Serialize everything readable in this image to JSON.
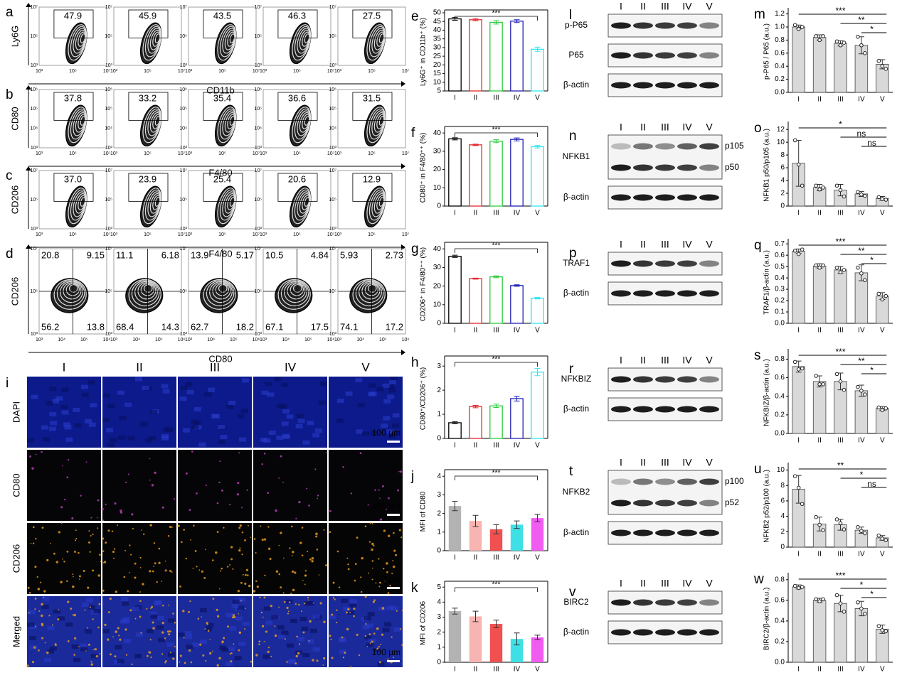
{
  "flow": {
    "rows": [
      {
        "panel": "a",
        "ylabel": "Ly6G",
        "xlabel": "CD11b",
        "xticks": [
          "10³",
          "10⁵",
          "10⁷"
        ],
        "yticks": [
          "10⁷",
          "10⁵",
          "10³"
        ],
        "gates": [
          "47.9",
          "45.9",
          "43.5",
          "46.3",
          "27.5"
        ]
      },
      {
        "panel": "b",
        "ylabel": "CD80",
        "xlabel": "F4/80",
        "xticks": [
          "10³",
          "10⁵",
          "10⁷"
        ],
        "yticks": [
          "10⁶",
          "10⁵",
          "10⁴",
          "10³"
        ],
        "gates": [
          "37.8",
          "33.2",
          "35.4",
          "36.6",
          "31.5"
        ]
      },
      {
        "panel": "c",
        "ylabel": "CD206",
        "xlabel": "F4/80",
        "xticks": [
          "10³",
          "10⁵",
          "10⁷"
        ],
        "yticks": [
          "10⁷",
          "10⁵",
          "10³"
        ],
        "gates": [
          "37.0",
          "23.9",
          "25.4",
          "20.6",
          "12.9"
        ]
      },
      {
        "panel": "d",
        "ylabel": "CD206",
        "xlabel": "CD80",
        "xticks": [
          "10³",
          "10⁴",
          "10⁵",
          "10⁶"
        ],
        "yticks": [
          "10⁷",
          "10⁵",
          "10³"
        ],
        "quadrants": [
          [
            "20.8",
            "9.15",
            "56.2",
            "13.8"
          ],
          [
            "11.1",
            "6.18",
            "68.4",
            "14.3"
          ],
          [
            "13.9",
            "5.17",
            "62.7",
            "18.2"
          ],
          [
            "10.5",
            "4.84",
            "67.1",
            "17.5"
          ],
          [
            "5.93",
            "2.73",
            "74.1",
            "17.2"
          ]
        ]
      }
    ]
  },
  "microscopy": {
    "panel": "i",
    "columns": [
      "I",
      "II",
      "III",
      "IV",
      "V"
    ],
    "rows": [
      "DAPI",
      "CD80",
      "CD206",
      "Merged"
    ],
    "scale_bar": "100 µm"
  },
  "blots": [
    {
      "panel": "l",
      "lanes": [
        "I",
        "II",
        "III",
        "IV",
        "V"
      ],
      "rows": [
        {
          "label": "p-P65"
        },
        {
          "label": "P65"
        },
        {
          "label": "β-actin"
        }
      ]
    },
    {
      "panel": "n",
      "lanes": [
        "I",
        "II",
        "III",
        "IV",
        "V"
      ],
      "rows": [
        {
          "label": "NFKB1",
          "bands": [
            "p105",
            "p50"
          ]
        },
        {
          "label": "β-actin"
        }
      ]
    },
    {
      "panel": "p",
      "lanes": [
        "I",
        "II",
        "III",
        "IV",
        "V"
      ],
      "rows": [
        {
          "label": "TRAF1"
        },
        {
          "label": "β-actin"
        }
      ]
    },
    {
      "panel": "r",
      "lanes": [
        "I",
        "II",
        "III",
        "IV",
        "V"
      ],
      "rows": [
        {
          "label": "NFKBIZ"
        },
        {
          "label": "β-actin"
        }
      ]
    },
    {
      "panel": "t",
      "lanes": [
        "I",
        "II",
        "III",
        "IV",
        "V"
      ],
      "rows": [
        {
          "label": "NFKB2",
          "bands": [
            "p100",
            "p52"
          ]
        },
        {
          "label": "β-actin"
        }
      ]
    },
    {
      "panel": "v",
      "lanes": [
        "I",
        "II",
        "III",
        "IV",
        "V"
      ],
      "rows": [
        {
          "label": "BIRC2"
        },
        {
          "label": "β-actin"
        }
      ]
    }
  ],
  "chart_data": [
    {
      "type": "bar",
      "panel": "e",
      "ylabel": "Ly6G⁺ in CD11b⁺ (%)",
      "categories": [
        "I",
        "II",
        "III",
        "IV",
        "V"
      ],
      "values": [
        46.5,
        46,
        44.5,
        45.2,
        29
      ],
      "errors": [
        0.8,
        0.6,
        1,
        0.8,
        1.2
      ],
      "bar_style": "outline",
      "colors": [
        "#000000",
        "#e8262b",
        "#2ecc40",
        "#1f1fb4",
        "#2ee6f0"
      ],
      "ylim": [
        5,
        50
      ],
      "yticks": [
        5,
        10,
        15,
        20,
        25,
        30,
        35,
        40,
        45,
        50
      ],
      "brackets": [
        "***"
      ]
    },
    {
      "type": "bar",
      "panel": "f",
      "ylabel": "CD80⁺ in F4/80⁺⁺ (%)",
      "categories": [
        "I",
        "II",
        "III",
        "IV",
        "V"
      ],
      "values": [
        36.8,
        33.5,
        35.5,
        36.5,
        32.5
      ],
      "errors": [
        0.6,
        0.4,
        0.8,
        0.8,
        0.7
      ],
      "bar_style": "outline",
      "colors": [
        "#000000",
        "#e8262b",
        "#2ecc40",
        "#1f1fb4",
        "#2ee6f0"
      ],
      "ylim": [
        0,
        42
      ],
      "yticks": [
        0,
        10,
        20,
        30,
        40
      ],
      "brackets": [
        "***"
      ]
    },
    {
      "type": "bar",
      "panel": "g",
      "ylabel": "CD206⁺ in F4/80⁺⁺ (%)",
      "categories": [
        "I",
        "II",
        "III",
        "IV",
        "V"
      ],
      "values": [
        36,
        24,
        25,
        20.3,
        13.5
      ],
      "errors": [
        0.6,
        0.3,
        0.5,
        0.4,
        0.4
      ],
      "bar_style": "outline",
      "colors": [
        "#000000",
        "#e8262b",
        "#2ecc40",
        "#1f1fb4",
        "#2ee6f0"
      ],
      "ylim": [
        0,
        42
      ],
      "yticks": [
        0,
        10,
        20,
        30,
        40
      ],
      "brackets": [
        "***"
      ]
    },
    {
      "type": "bar",
      "panel": "h",
      "ylabel": "CD80⁺/CD206⁺ (%)",
      "categories": [
        "I",
        "II",
        "III",
        "IV",
        "V"
      ],
      "values": [
        0.65,
        1.32,
        1.35,
        1.65,
        2.75
      ],
      "errors": [
        0.04,
        0.05,
        0.07,
        0.1,
        0.15
      ],
      "bar_style": "outline",
      "colors": [
        "#000000",
        "#e8262b",
        "#2ecc40",
        "#1f1fb4",
        "#2ee6f0"
      ],
      "ylim": [
        0,
        3.3
      ],
      "yticks": [
        0,
        1,
        2,
        3
      ],
      "brackets": [
        "***"
      ]
    },
    {
      "type": "bar",
      "panel": "j",
      "ylabel": "MFI of CD80",
      "categories": [
        "I",
        "II",
        "III",
        "IV",
        "V"
      ],
      "values": [
        2.4,
        1.6,
        1.15,
        1.4,
        1.75
      ],
      "errors": [
        0.25,
        0.3,
        0.25,
        0.2,
        0.2
      ],
      "bar_style": "filled",
      "colors": [
        "#b3b3b3",
        "#f7b4b0",
        "#f0504f",
        "#3ee0e6",
        "#f05cf0"
      ],
      "ylim": [
        0,
        4.2
      ],
      "yticks": [
        0,
        1,
        2,
        3,
        4
      ],
      "brackets": [
        "***"
      ]
    },
    {
      "type": "bar",
      "panel": "k",
      "ylabel": "MFI of CD206",
      "categories": [
        "I",
        "II",
        "III",
        "IV",
        "V"
      ],
      "values": [
        3.4,
        3.05,
        2.55,
        1.55,
        1.65
      ],
      "errors": [
        0.2,
        0.35,
        0.25,
        0.4,
        0.15
      ],
      "bar_style": "filled",
      "colors": [
        "#b3b3b3",
        "#f7b4b0",
        "#f0504f",
        "#3ee0e6",
        "#f05cf0"
      ],
      "ylim": [
        0,
        5.2
      ],
      "yticks": [
        0,
        1,
        2,
        3,
        4,
        5
      ],
      "brackets": [
        "***"
      ]
    },
    {
      "type": "bar",
      "panel": "m",
      "ylabel": "p-P65 / P65 (a.u.)",
      "categories": [
        "I",
        "II",
        "III",
        "IV",
        "V"
      ],
      "values": [
        1.0,
        0.84,
        0.75,
        0.72,
        0.43
      ],
      "errors": [
        0.03,
        0.04,
        0.04,
        0.13,
        0.07
      ],
      "points": [
        [
          1.03,
          0.97,
          1.0
        ],
        [
          0.86,
          0.8,
          0.86
        ],
        [
          0.78,
          0.72,
          0.76
        ],
        [
          0.85,
          0.72,
          0.6
        ],
        [
          0.48,
          0.4,
          0.36
        ]
      ],
      "bar_style": "filled",
      "colors": [
        "#d9d9d9",
        "#d9d9d9",
        "#d9d9d9",
        "#d9d9d9",
        "#d9d9d9"
      ],
      "ylim": [
        0,
        1.25
      ],
      "yticks": [
        {
          "value": 0,
          "label": "0.0"
        },
        0.2,
        0.4,
        0.6,
        0.8,
        {
          "value": 1,
          "label": "1.0"
        },
        1.2
      ],
      "brackets": [
        "***",
        "**",
        "*"
      ]
    },
    {
      "type": "bar",
      "panel": "o",
      "ylabel": "NFKB1 p50/p105 (a.u.)",
      "categories": [
        "I",
        "II",
        "III",
        "IV",
        "V"
      ],
      "values": [
        6.7,
        2.9,
        2.5,
        1.9,
        1.2
      ],
      "errors": [
        3.6,
        0.5,
        0.9,
        0.4,
        0.3
      ],
      "points": [
        [
          10.3,
          6.5,
          3.2
        ],
        [
          3.2,
          2.6,
          2.9
        ],
        [
          3.2,
          2.5,
          1.5
        ],
        [
          2.2,
          1.8,
          1.6
        ],
        [
          1.4,
          1.1,
          1.0
        ]
      ],
      "bar_style": "filled",
      "colors": [
        "#d9d9d9",
        "#d9d9d9",
        "#d9d9d9",
        "#d9d9d9",
        "#d9d9d9"
      ],
      "ylim": [
        0,
        12.8
      ],
      "yticks": [
        0,
        2,
        4,
        6,
        8,
        10,
        12
      ],
      "brackets": [
        "*",
        "ns",
        "ns"
      ]
    },
    {
      "type": "bar",
      "panel": "q",
      "ylabel": "TRAF1/β-actin (a.u.)",
      "categories": [
        "I",
        "II",
        "III",
        "IV",
        "V"
      ],
      "values": [
        0.635,
        0.505,
        0.47,
        0.445,
        0.24
      ],
      "errors": [
        0.02,
        0.02,
        0.03,
        0.07,
        0.03
      ],
      "points": [
        [
          0.64,
          0.61,
          0.65
        ],
        [
          0.51,
          0.49,
          0.51
        ],
        [
          0.49,
          0.45,
          0.47
        ],
        [
          0.49,
          0.44,
          0.38
        ],
        [
          0.26,
          0.21,
          0.24
        ]
      ],
      "bar_style": "filled",
      "colors": [
        "#d9d9d9",
        "#d9d9d9",
        "#d9d9d9",
        "#d9d9d9",
        "#d9d9d9"
      ],
      "ylim": [
        0,
        0.72
      ],
      "yticks": [
        {
          "value": 0,
          "label": "0.0"
        },
        0.1,
        0.2,
        0.3,
        0.4,
        0.5,
        0.6,
        0.7
      ],
      "brackets": [
        "***",
        "**",
        "*"
      ]
    },
    {
      "type": "bar",
      "panel": "s",
      "ylabel": "NFKBIZ/β-actin (a.u.)",
      "categories": [
        "I",
        "II",
        "III",
        "IV",
        "V"
      ],
      "values": [
        0.72,
        0.56,
        0.56,
        0.46,
        0.27
      ],
      "errors": [
        0.06,
        0.06,
        0.09,
        0.06,
        0.02
      ],
      "points": [
        [
          0.77,
          0.69,
          0.7
        ],
        [
          0.62,
          0.53,
          0.53
        ],
        [
          0.64,
          0.56,
          0.47
        ],
        [
          0.5,
          0.46,
          0.42
        ],
        [
          0.28,
          0.25,
          0.27
        ]
      ],
      "bar_style": "filled",
      "colors": [
        "#d9d9d9",
        "#d9d9d9",
        "#d9d9d9",
        "#d9d9d9",
        "#d9d9d9"
      ],
      "ylim": [
        0,
        0.88
      ],
      "yticks": [
        {
          "value": 0,
          "label": "0.0"
        },
        0.2,
        0.4,
        0.6,
        0.8
      ],
      "brackets": [
        "***",
        "**",
        "*"
      ]
    },
    {
      "type": "bar",
      "panel": "u",
      "ylabel": "NFKB2 p52/p100 (a.u.)",
      "categories": [
        "I",
        "II",
        "III",
        "IV",
        "V"
      ],
      "values": [
        7.5,
        3,
        2.9,
        2.2,
        1.2
      ],
      "errors": [
        1.8,
        0.9,
        0.7,
        0.4,
        0.3
      ],
      "points": [
        [
          9.2,
          7.7,
          5.6
        ],
        [
          3.9,
          2.9,
          2.2
        ],
        [
          3.6,
          3.1,
          2.3
        ],
        [
          2.6,
          2.1,
          1.8
        ],
        [
          1.5,
          1.1,
          0.9
        ]
      ],
      "bar_style": "filled",
      "colors": [
        "#d9d9d9",
        "#d9d9d9",
        "#d9d9d9",
        "#d9d9d9",
        "#d9d9d9"
      ],
      "ylim": [
        0,
        10.6
      ],
      "yticks": [
        0,
        2,
        4,
        6,
        8,
        10
      ],
      "brackets": [
        "**",
        "*",
        "ns"
      ]
    },
    {
      "type": "bar",
      "panel": "w",
      "ylabel": "BIRC2/β-actin (a.u.)",
      "categories": [
        "I",
        "II",
        "III",
        "IV",
        "V"
      ],
      "values": [
        0.73,
        0.6,
        0.57,
        0.52,
        0.32
      ],
      "errors": [
        0.02,
        0.02,
        0.08,
        0.07,
        0.04
      ],
      "points": [
        [
          0.74,
          0.72,
          0.73
        ],
        [
          0.61,
          0.59,
          0.61
        ],
        [
          0.65,
          0.57,
          0.49
        ],
        [
          0.58,
          0.52,
          0.47
        ],
        [
          0.35,
          0.31,
          0.3
        ]
      ],
      "bar_style": "filled",
      "colors": [
        "#d9d9d9",
        "#d9d9d9",
        "#d9d9d9",
        "#d9d9d9",
        "#d9d9d9"
      ],
      "ylim": [
        0,
        0.84
      ],
      "yticks": [
        {
          "value": 0,
          "label": "0.0"
        },
        0.2,
        0.4,
        0.6,
        0.8
      ],
      "brackets": [
        "***",
        "*",
        "*"
      ]
    }
  ]
}
